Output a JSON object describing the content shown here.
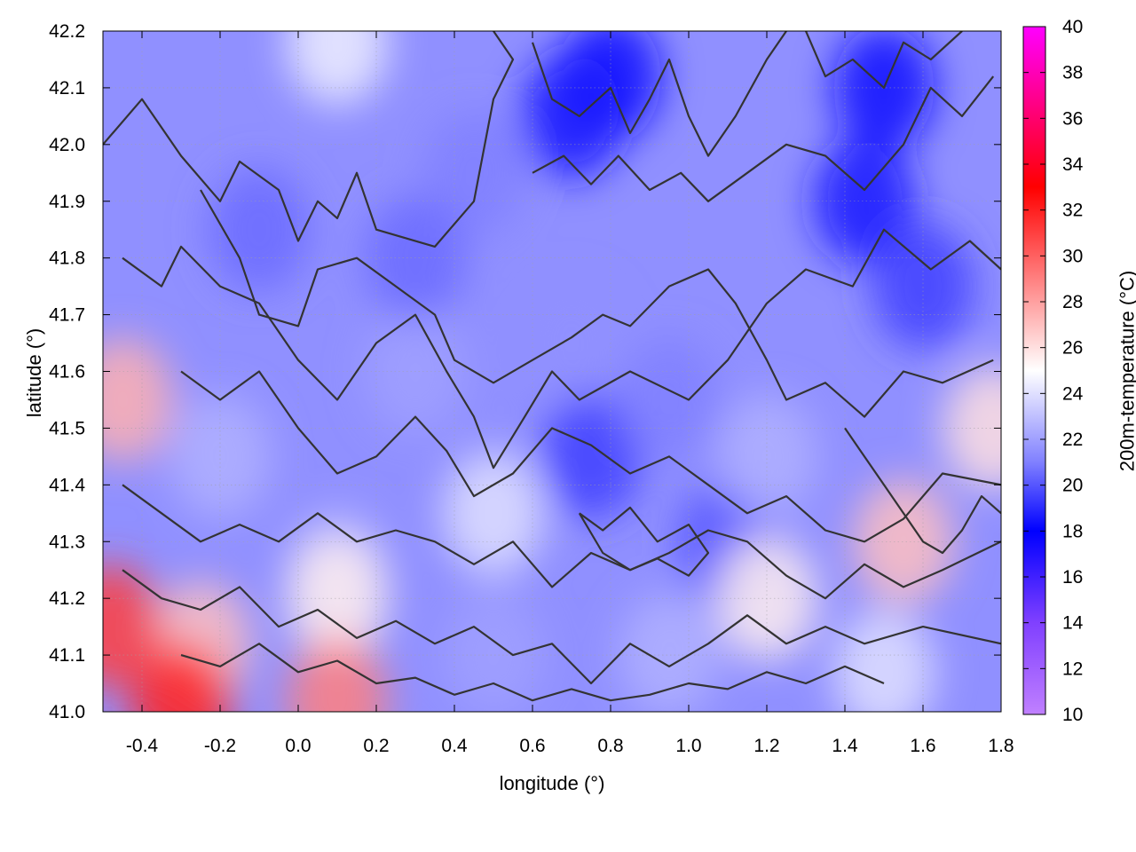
{
  "chart_data": {
    "type": "heatmap",
    "title": "",
    "xlabel": "longitude (°)",
    "ylabel": "latitude (°)",
    "colorbar_label": "200m-temperature (°C)",
    "xlim": [
      -0.5,
      1.8
    ],
    "ylim": [
      41.0,
      42.2
    ],
    "x_ticks": [
      -0.4,
      -0.2,
      0.0,
      0.2,
      0.4,
      0.6,
      0.8,
      1.0,
      1.2,
      1.4,
      1.6,
      1.8
    ],
    "x_tick_labels": [
      "-0.4",
      "-0.2",
      "0.0",
      "0.2",
      "0.4",
      "0.6",
      "0.8",
      "1.0",
      "1.2",
      "1.4",
      "1.6",
      "1.8"
    ],
    "y_ticks": [
      41.0,
      41.1,
      41.2,
      41.3,
      41.4,
      41.5,
      41.6,
      41.7,
      41.8,
      41.9,
      42.0,
      42.1,
      42.2
    ],
    "y_tick_labels": [
      "41.0",
      "41.1",
      "41.2",
      "41.3",
      "41.4",
      "41.5",
      "41.6",
      "41.7",
      "41.8",
      "41.9",
      "42.0",
      "42.1",
      "42.2"
    ],
    "colorbar_range": [
      10,
      40
    ],
    "colorbar_ticks": [
      10,
      12,
      14,
      16,
      18,
      20,
      22,
      24,
      26,
      28,
      30,
      32,
      34,
      36,
      38,
      40
    ],
    "colorbar_tick_labels": [
      "10",
      "12",
      "14",
      "16",
      "18",
      "20",
      "22",
      "24",
      "26",
      "28",
      "30",
      "32",
      "34",
      "36",
      "38",
      "40"
    ],
    "colormap": [
      {
        "value": 10,
        "color": "#c080ff"
      },
      {
        "value": 14,
        "color": "#8040ff"
      },
      {
        "value": 18,
        "color": "#0000ff"
      },
      {
        "value": 21,
        "color": "#8080ff"
      },
      {
        "value": 25,
        "color": "#ffffff"
      },
      {
        "value": 29,
        "color": "#ff8080"
      },
      {
        "value": 33,
        "color": "#ff0000"
      },
      {
        "value": 40,
        "color": "#ff00ff"
      }
    ],
    "grid": true,
    "contour_color": "#333333",
    "temperature_regions": [
      {
        "lon": -0.1,
        "lat": 41.85,
        "value": 20.5
      },
      {
        "lon": 0.45,
        "lat": 41.95,
        "value": 21.0
      },
      {
        "lon": 0.8,
        "lat": 42.12,
        "value": 17.5
      },
      {
        "lon": 0.7,
        "lat": 42.05,
        "value": 18.5
      },
      {
        "lon": 1.5,
        "lat": 42.1,
        "value": 17.5
      },
      {
        "lon": 1.45,
        "lat": 41.9,
        "value": 18.5
      },
      {
        "lon": 1.6,
        "lat": 41.75,
        "value": 19.5
      },
      {
        "lon": 0.7,
        "lat": 41.65,
        "value": 21.5
      },
      {
        "lon": 0.3,
        "lat": 41.6,
        "value": 22.0
      },
      {
        "lon": -0.2,
        "lat": 41.45,
        "value": 22.5
      },
      {
        "lon": 0.75,
        "lat": 41.45,
        "value": 19.5
      },
      {
        "lon": 1.1,
        "lat": 41.3,
        "value": 20.0
      },
      {
        "lon": 0.95,
        "lat": 41.55,
        "value": 21.0
      },
      {
        "lon": 1.2,
        "lat": 41.45,
        "value": 22.5
      },
      {
        "lon": 0.1,
        "lat": 41.25,
        "value": 22.5
      },
      {
        "lon": 0.5,
        "lat": 41.35,
        "value": 24.0
      },
      {
        "lon": -0.25,
        "lat": 41.12,
        "value": 27.0
      },
      {
        "lon": -0.45,
        "lat": 41.55,
        "value": 27.5
      },
      {
        "lon": 0.1,
        "lat": 41.2,
        "value": 25.5
      },
      {
        "lon": 1.55,
        "lat": 41.3,
        "value": 27.0
      },
      {
        "lon": 1.2,
        "lat": 41.2,
        "value": 25.5
      },
      {
        "lon": 1.5,
        "lat": 41.07,
        "value": 24.0
      },
      {
        "lon": 0.95,
        "lat": 41.1,
        "value": 22.5
      },
      {
        "lon": 0.5,
        "lat": 41.1,
        "value": 22.0
      },
      {
        "lon": 0.1,
        "lat": 41.02,
        "value": 29.0
      },
      {
        "lon": -0.3,
        "lat": 41.01,
        "value": 32.0
      },
      {
        "lon": -0.48,
        "lat": 41.15,
        "value": 31.0
      },
      {
        "lon": 0.1,
        "lat": 42.18,
        "value": 24.5
      },
      {
        "lon": 1.78,
        "lat": 41.5,
        "value": 26.0
      },
      {
        "lon": 0.3,
        "lat": 41.8,
        "value": 20.5
      }
    ],
    "contours": [
      [
        [
          -0.5,
          42.0
        ],
        [
          -0.4,
          42.08
        ],
        [
          -0.3,
          41.98
        ],
        [
          -0.2,
          41.9
        ],
        [
          -0.15,
          41.97
        ],
        [
          -0.05,
          41.92
        ],
        [
          0.0,
          41.83
        ],
        [
          0.05,
          41.9
        ],
        [
          0.1,
          41.87
        ],
        [
          0.15,
          41.95
        ],
        [
          0.2,
          41.85
        ],
        [
          0.35,
          41.82
        ],
        [
          0.45,
          41.9
        ],
        [
          0.5,
          42.08
        ],
        [
          0.55,
          42.15
        ],
        [
          0.5,
          42.2
        ]
      ],
      [
        [
          -0.45,
          41.8
        ],
        [
          -0.35,
          41.75
        ],
        [
          -0.3,
          41.82
        ],
        [
          -0.2,
          41.75
        ],
        [
          -0.1,
          41.72
        ],
        [
          0.0,
          41.62
        ],
        [
          0.1,
          41.55
        ],
        [
          0.2,
          41.65
        ],
        [
          0.3,
          41.7
        ],
        [
          0.38,
          41.6
        ],
        [
          0.45,
          41.52
        ],
        [
          0.5,
          41.43
        ],
        [
          0.58,
          41.52
        ],
        [
          0.65,
          41.6
        ],
        [
          0.72,
          41.55
        ],
        [
          0.85,
          41.6
        ],
        [
          1.0,
          41.55
        ],
        [
          1.1,
          41.62
        ],
        [
          1.2,
          41.72
        ],
        [
          1.3,
          41.78
        ],
        [
          1.42,
          41.75
        ],
        [
          1.5,
          41.85
        ],
        [
          1.62,
          41.78
        ],
        [
          1.72,
          41.83
        ],
        [
          1.8,
          41.78
        ]
      ],
      [
        [
          -0.25,
          41.92
        ],
        [
          -0.15,
          41.8
        ],
        [
          -0.1,
          41.7
        ],
        [
          0.0,
          41.68
        ],
        [
          0.05,
          41.78
        ],
        [
          0.15,
          41.8
        ],
        [
          0.25,
          41.75
        ],
        [
          0.35,
          41.7
        ],
        [
          0.4,
          41.62
        ],
        [
          0.5,
          41.58
        ],
        [
          0.6,
          41.62
        ],
        [
          0.7,
          41.66
        ],
        [
          0.78,
          41.7
        ],
        [
          0.85,
          41.68
        ],
        [
          0.95,
          41.75
        ],
        [
          1.05,
          41.78
        ],
        [
          1.12,
          41.72
        ],
        [
          1.2,
          41.62
        ],
        [
          1.25,
          41.55
        ],
        [
          1.35,
          41.58
        ],
        [
          1.45,
          41.52
        ],
        [
          1.55,
          41.6
        ],
        [
          1.65,
          41.58
        ],
        [
          1.78,
          41.62
        ]
      ],
      [
        [
          -0.3,
          41.6
        ],
        [
          -0.2,
          41.55
        ],
        [
          -0.1,
          41.6
        ],
        [
          0.0,
          41.5
        ],
        [
          0.1,
          41.42
        ],
        [
          0.2,
          41.45
        ],
        [
          0.3,
          41.52
        ],
        [
          0.38,
          41.46
        ],
        [
          0.45,
          41.38
        ],
        [
          0.55,
          41.42
        ],
        [
          0.65,
          41.5
        ],
        [
          0.75,
          41.47
        ],
        [
          0.85,
          41.42
        ],
        [
          0.95,
          41.45
        ],
        [
          1.05,
          41.4
        ],
        [
          1.15,
          41.35
        ],
        [
          1.25,
          41.38
        ],
        [
          1.35,
          41.32
        ],
        [
          1.45,
          41.3
        ],
        [
          1.55,
          41.34
        ],
        [
          1.65,
          41.42
        ],
        [
          1.8,
          41.4
        ]
      ],
      [
        [
          -0.45,
          41.4
        ],
        [
          -0.35,
          41.35
        ],
        [
          -0.25,
          41.3
        ],
        [
          -0.15,
          41.33
        ],
        [
          -0.05,
          41.3
        ],
        [
          0.05,
          41.35
        ],
        [
          0.15,
          41.3
        ],
        [
          0.25,
          41.32
        ],
        [
          0.35,
          41.3
        ],
        [
          0.45,
          41.26
        ],
        [
          0.55,
          41.3
        ],
        [
          0.65,
          41.22
        ],
        [
          0.75,
          41.28
        ],
        [
          0.85,
          41.25
        ],
        [
          0.95,
          41.28
        ],
        [
          1.05,
          41.32
        ],
        [
          1.15,
          41.3
        ],
        [
          1.25,
          41.24
        ],
        [
          1.35,
          41.2
        ],
        [
          1.45,
          41.26
        ],
        [
          1.55,
          41.22
        ],
        [
          1.65,
          41.25
        ],
        [
          1.8,
          41.3
        ]
      ],
      [
        [
          -0.45,
          41.25
        ],
        [
          -0.35,
          41.2
        ],
        [
          -0.25,
          41.18
        ],
        [
          -0.15,
          41.22
        ],
        [
          -0.05,
          41.15
        ],
        [
          0.05,
          41.18
        ],
        [
          0.15,
          41.13
        ],
        [
          0.25,
          41.16
        ],
        [
          0.35,
          41.12
        ],
        [
          0.45,
          41.15
        ],
        [
          0.55,
          41.1
        ],
        [
          0.65,
          41.12
        ],
        [
          0.75,
          41.05
        ],
        [
          0.85,
          41.12
        ],
        [
          0.95,
          41.08
        ],
        [
          1.05,
          41.12
        ],
        [
          1.15,
          41.17
        ],
        [
          1.25,
          41.12
        ],
        [
          1.35,
          41.15
        ],
        [
          1.45,
          41.12
        ],
        [
          1.6,
          41.15
        ],
        [
          1.8,
          41.12
        ]
      ],
      [
        [
          -0.3,
          41.1
        ],
        [
          -0.2,
          41.08
        ],
        [
          -0.1,
          41.12
        ],
        [
          0.0,
          41.07
        ],
        [
          0.1,
          41.09
        ],
        [
          0.2,
          41.05
        ],
        [
          0.3,
          41.06
        ],
        [
          0.4,
          41.03
        ],
        [
          0.5,
          41.05
        ],
        [
          0.6,
          41.02
        ],
        [
          0.7,
          41.04
        ],
        [
          0.8,
          41.02
        ],
        [
          0.9,
          41.03
        ],
        [
          1.0,
          41.05
        ],
        [
          1.1,
          41.04
        ],
        [
          1.2,
          41.07
        ],
        [
          1.3,
          41.05
        ],
        [
          1.4,
          41.08
        ],
        [
          1.5,
          41.05
        ]
      ],
      [
        [
          0.6,
          42.18
        ],
        [
          0.65,
          42.08
        ],
        [
          0.72,
          42.05
        ],
        [
          0.8,
          42.1
        ],
        [
          0.85,
          42.02
        ],
        [
          0.9,
          42.08
        ],
        [
          0.95,
          42.15
        ],
        [
          1.0,
          42.05
        ],
        [
          1.05,
          41.98
        ],
        [
          1.12,
          42.05
        ],
        [
          1.2,
          42.15
        ],
        [
          1.25,
          42.2
        ]
      ],
      [
        [
          0.6,
          41.95
        ],
        [
          0.68,
          41.98
        ],
        [
          0.75,
          41.93
        ],
        [
          0.82,
          41.98
        ],
        [
          0.9,
          41.92
        ],
        [
          0.98,
          41.95
        ],
        [
          1.05,
          41.9
        ],
        [
          1.15,
          41.95
        ],
        [
          1.25,
          42.0
        ],
        [
          1.35,
          41.98
        ],
        [
          1.45,
          41.92
        ],
        [
          1.55,
          42.0
        ],
        [
          1.62,
          42.1
        ],
        [
          1.7,
          42.05
        ],
        [
          1.78,
          42.12
        ]
      ],
      [
        [
          1.3,
          42.2
        ],
        [
          1.35,
          42.12
        ],
        [
          1.42,
          42.15
        ],
        [
          1.5,
          42.1
        ],
        [
          1.55,
          42.18
        ],
        [
          1.62,
          42.15
        ],
        [
          1.7,
          42.2
        ]
      ],
      [
        [
          1.4,
          41.5
        ],
        [
          1.45,
          41.45
        ],
        [
          1.5,
          41.4
        ],
        [
          1.55,
          41.35
        ],
        [
          1.6,
          41.3
        ],
        [
          1.65,
          41.28
        ],
        [
          1.7,
          41.32
        ],
        [
          1.75,
          41.38
        ],
        [
          1.8,
          41.35
        ]
      ],
      [
        [
          0.72,
          41.35
        ],
        [
          0.78,
          41.32
        ],
        [
          0.85,
          41.36
        ],
        [
          0.92,
          41.3
        ],
        [
          1.0,
          41.33
        ],
        [
          1.05,
          41.28
        ],
        [
          1.0,
          41.24
        ],
        [
          0.92,
          41.27
        ],
        [
          0.85,
          41.25
        ],
        [
          0.78,
          41.28
        ],
        [
          0.72,
          41.35
        ]
      ]
    ]
  }
}
